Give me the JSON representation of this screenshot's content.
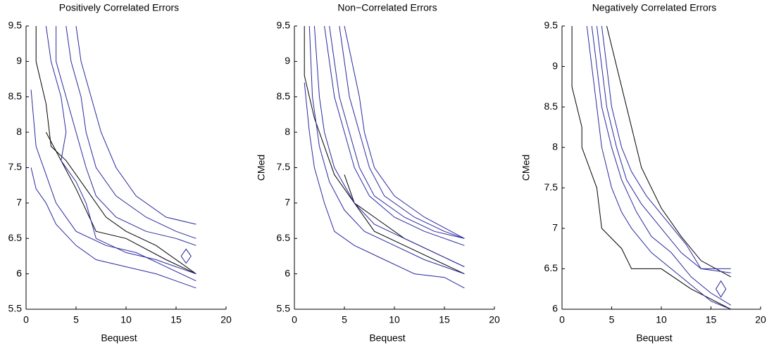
{
  "chart_data": [
    {
      "type": "line",
      "title": "Positively Correlated Errors",
      "x_label": "Bequest",
      "xlim": [
        0,
        20
      ],
      "ylim": [
        5.5,
        9.5
      ],
      "xticks": [
        0,
        5,
        10,
        15,
        20
      ],
      "yticks": [
        5.5,
        6,
        6.5,
        7,
        7.5,
        8,
        8.5,
        9,
        9.5
      ],
      "series": [
        {
          "color": "#000000",
          "x": [
            1,
            1,
            2,
            2.5,
            4,
            6,
            8,
            10,
            13,
            17
          ],
          "values": [
            9.5,
            9,
            8.4,
            7.8,
            7.6,
            7.2,
            6.8,
            6.6,
            6.4,
            6.0
          ]
        },
        {
          "color": "#000000",
          "x": [
            2,
            5,
            7,
            10,
            14,
            17
          ],
          "values": [
            8.0,
            7.2,
            6.6,
            6.5,
            6.2,
            6.0
          ]
        },
        {
          "color": "#2828a0",
          "x": [
            0.5,
            1,
            2,
            3,
            5,
            7,
            10,
            13,
            15,
            17
          ],
          "values": [
            7.5,
            7.2,
            7.0,
            6.7,
            6.4,
            6.2,
            6.1,
            6.0,
            5.9,
            5.8
          ]
        },
        {
          "color": "#2828a0",
          "x": [
            0.5,
            1,
            2,
            3,
            5,
            8,
            11,
            14,
            17
          ],
          "values": [
            8.6,
            7.8,
            7.4,
            7.0,
            6.6,
            6.4,
            6.3,
            6.1,
            5.9
          ]
        },
        {
          "color": "#2828a0",
          "x": [
            3,
            3,
            4,
            5,
            6,
            7,
            9,
            12,
            15,
            17
          ],
          "values": [
            9.5,
            9,
            8.5,
            8.0,
            7.5,
            7.1,
            6.8,
            6.6,
            6.5,
            6.4
          ]
        },
        {
          "color": "#2828a0",
          "x": [
            4,
            4.5,
            5.5,
            6,
            7,
            9,
            12,
            15,
            17
          ],
          "values": [
            9.5,
            9,
            8.5,
            8.0,
            7.5,
            7.1,
            6.8,
            6.6,
            6.5
          ]
        },
        {
          "color": "#2828a0",
          "x": [
            5,
            5.5,
            6.5,
            7.5,
            9,
            11,
            14,
            17
          ],
          "values": [
            9.5,
            9,
            8.5,
            8.0,
            7.5,
            7.1,
            6.8,
            6.7
          ]
        },
        {
          "color": "#2828a0",
          "x": [
            2,
            2.5,
            3.5,
            4,
            3.5,
            5,
            6,
            7,
            10,
            13,
            15,
            17
          ],
          "values": [
            9.5,
            9,
            8.5,
            8.0,
            7.6,
            7.3,
            7.0,
            6.5,
            6.3,
            6.2,
            6.1,
            6.0
          ]
        },
        {
          "color": "#2828a0",
          "x": [
            15.5,
            16,
            16.5,
            16,
            15.5
          ],
          "values": [
            6.25,
            6.35,
            6.25,
            6.15,
            6.25
          ]
        }
      ]
    },
    {
      "type": "line",
      "title": "Non−Correlated Errors",
      "x_label": "Bequest",
      "y_label": "CMed",
      "xlim": [
        0,
        20
      ],
      "ylim": [
        5.5,
        9.5
      ],
      "xticks": [
        0,
        5,
        10,
        15,
        20
      ],
      "yticks": [
        5.5,
        6,
        6.5,
        7,
        7.5,
        8,
        8.5,
        9,
        9.5
      ],
      "series": [
        {
          "color": "#000000",
          "x": [
            1,
            1,
            2,
            3,
            4,
            6,
            8,
            11,
            14,
            17
          ],
          "values": [
            9.5,
            8.8,
            8.2,
            7.8,
            7.4,
            7.0,
            6.8,
            6.5,
            6.3,
            6.1
          ]
        },
        {
          "color": "#000000",
          "x": [
            5,
            6,
            8,
            11,
            17
          ],
          "values": [
            7.4,
            7.0,
            6.6,
            6.4,
            6.0
          ]
        },
        {
          "color": "#2828a0",
          "x": [
            1,
            1.5,
            2,
            3,
            4,
            6,
            9,
            12,
            15,
            17
          ],
          "values": [
            8.7,
            8,
            7.5,
            7,
            6.6,
            6.4,
            6.2,
            6.0,
            5.95,
            5.8
          ]
        },
        {
          "color": "#2828a0",
          "x": [
            1.5,
            1.8,
            2.5,
            3.5,
            5,
            7,
            10,
            13,
            17
          ],
          "values": [
            9.5,
            8.5,
            7.8,
            7.3,
            6.9,
            6.6,
            6.4,
            6.2,
            6.0
          ]
        },
        {
          "color": "#2828a0",
          "x": [
            2,
            2.5,
            3,
            4,
            6,
            8,
            11,
            14,
            17
          ],
          "values": [
            9.5,
            8.5,
            8.0,
            7.5,
            7.0,
            6.7,
            6.5,
            6.3,
            6.1
          ]
        },
        {
          "color": "#2828a0",
          "x": [
            3,
            4,
            5,
            6,
            7.5,
            10,
            13,
            17
          ],
          "values": [
            9.5,
            8.5,
            8.0,
            7.5,
            7.1,
            6.8,
            6.6,
            6.4
          ]
        },
        {
          "color": "#2828a0",
          "x": [
            3.5,
            4.5,
            5.5,
            6.5,
            8,
            11,
            14,
            17
          ],
          "values": [
            9.5,
            8.5,
            8.0,
            7.5,
            7.1,
            6.8,
            6.6,
            6.5
          ]
        },
        {
          "color": "#2828a0",
          "x": [
            4.5,
            5.5,
            6.5,
            7.5,
            9,
            12,
            15,
            17
          ],
          "values": [
            9.5,
            8.5,
            8.0,
            7.5,
            7.1,
            6.8,
            6.6,
            6.5
          ]
        },
        {
          "color": "#2828a0",
          "x": [
            5,
            6.5,
            7,
            8,
            10,
            13,
            17
          ],
          "values": [
            9.5,
            8.5,
            8.0,
            7.5,
            7.1,
            6.8,
            6.5
          ]
        }
      ]
    },
    {
      "type": "line",
      "title": "Negatively Correlated Errors",
      "x_label": "Bequest",
      "y_label": "CMed",
      "xlim": [
        0,
        20
      ],
      "ylim": [
        6,
        9.5
      ],
      "xticks": [
        0,
        5,
        10,
        15,
        20
      ],
      "yticks": [
        6,
        6.5,
        7,
        7.5,
        8,
        8.5,
        9,
        9.5
      ],
      "series": [
        {
          "color": "#000000",
          "x": [
            1,
            1,
            2,
            2,
            3.5,
            4,
            6,
            7,
            10,
            13,
            17
          ],
          "values": [
            9.5,
            8.75,
            8.25,
            8.0,
            7.5,
            7.0,
            6.75,
            6.5,
            6.5,
            6.25,
            6.0
          ]
        },
        {
          "color": "#000000",
          "x": [
            4.5,
            6,
            8,
            10,
            12,
            14,
            17
          ],
          "values": [
            9.5,
            8.75,
            7.75,
            7.25,
            6.9,
            6.6,
            6.4
          ]
        },
        {
          "color": "#2828a0",
          "x": [
            2.5,
            3,
            3.5,
            4,
            5,
            6,
            7,
            9,
            11,
            13,
            15,
            17
          ],
          "values": [
            9.5,
            9,
            8.5,
            8.0,
            7.5,
            7.2,
            7.0,
            6.7,
            6.5,
            6.3,
            6.1,
            6.0
          ]
        },
        {
          "color": "#2828a0",
          "x": [
            3,
            3.5,
            4,
            5,
            6,
            7.5,
            9,
            11,
            13,
            15,
            17
          ],
          "values": [
            9.5,
            9,
            8.5,
            8.0,
            7.6,
            7.2,
            6.9,
            6.7,
            6.4,
            6.2,
            6.05
          ]
        },
        {
          "color": "#2828a0",
          "x": [
            3.5,
            4,
            4.5,
            5.5,
            6.5,
            8,
            10,
            12,
            14,
            17
          ],
          "values": [
            9.5,
            9,
            8.5,
            8.0,
            7.6,
            7.3,
            7.0,
            6.7,
            6.5,
            6.45
          ]
        },
        {
          "color": "#2828a0",
          "x": [
            4,
            4.5,
            5,
            6,
            7,
            8.5,
            10.5,
            12.5,
            14,
            17
          ],
          "values": [
            9.5,
            9,
            8.5,
            8.0,
            7.7,
            7.4,
            7.1,
            6.8,
            6.5,
            6.5
          ]
        },
        {
          "color": "#2828a0",
          "x": [
            15.5,
            16,
            16.5,
            16,
            15.5
          ],
          "values": [
            6.25,
            6.35,
            6.25,
            6.15,
            6.25
          ]
        }
      ]
    }
  ]
}
